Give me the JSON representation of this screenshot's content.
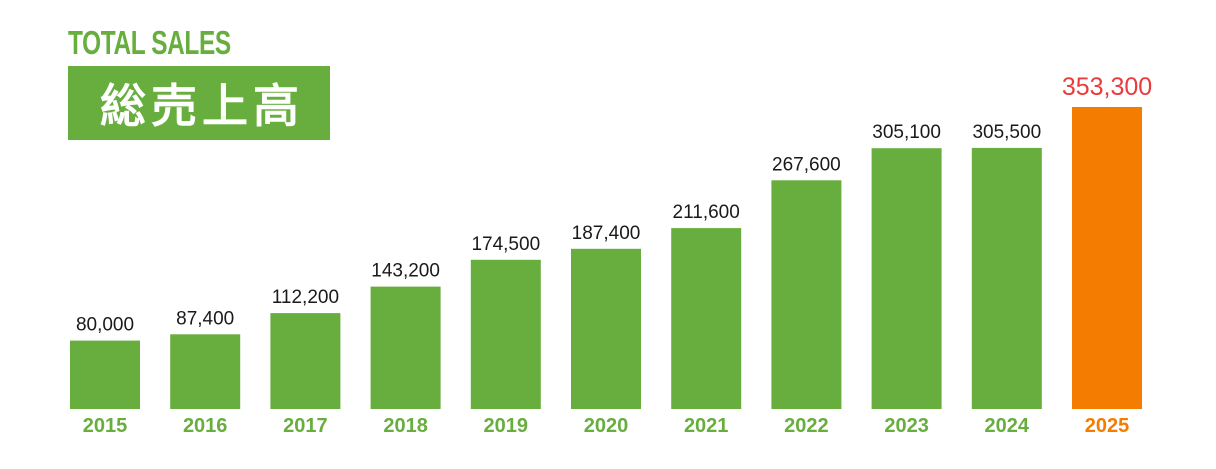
{
  "heading": {
    "title_en": "TOTAL SALES",
    "title_jp": "総売上高"
  },
  "colors": {
    "bar": "#67ae3e",
    "bar_highlight": "#f47c00",
    "value_label": "#1a1a1a",
    "value_label_highlight": "#e83c3c",
    "year_label": "#67ae3e",
    "year_label_highlight": "#f47c00"
  },
  "chart_data": {
    "type": "bar",
    "title": "TOTAL SALES",
    "subtitle": "総売上高",
    "categories": [
      "2015",
      "2016",
      "2017",
      "2018",
      "2019",
      "2020",
      "2021",
      "2022",
      "2023",
      "2024",
      "2025"
    ],
    "values": [
      80000,
      87400,
      112200,
      143200,
      174500,
      187400,
      211600,
      267600,
      305100,
      305500,
      353300
    ],
    "value_labels": [
      "80,000",
      "87,400",
      "112,200",
      "143,200",
      "174,500",
      "187,400",
      "211,600",
      "267,600",
      "305,100",
      "305,500",
      "353,300"
    ],
    "highlight_category": "2025",
    "ylim": [
      0,
      353300
    ],
    "grid": false,
    "legend": "none"
  }
}
